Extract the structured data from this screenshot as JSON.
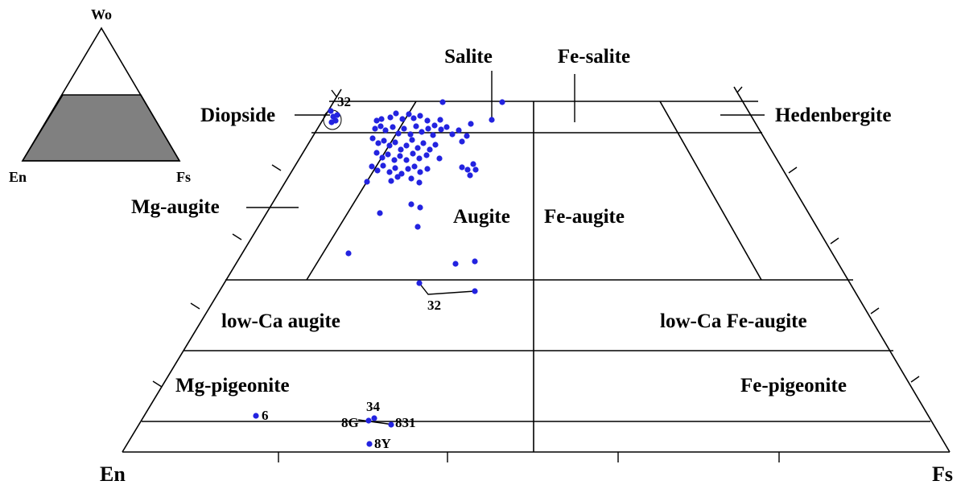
{
  "inset": {
    "apex": "Wo",
    "left": "En",
    "right": "Fs"
  },
  "axis": {
    "left": "En",
    "right": "Fs"
  },
  "fields": {
    "diopside": "Diopside",
    "salite": "Salite",
    "fe_salite": "Fe-salite",
    "hedenbergite": "Hedenbergite",
    "mg_augite": "Mg-augite",
    "augite": "Augite",
    "fe_augite": "Fe-augite",
    "low_ca_augite": "low-Ca augite",
    "low_ca_fe_augite": "low-Ca Fe-augite",
    "mg_pigeonite": "Mg-pigeonite",
    "fe_pigeonite": "Fe-pigeonite"
  },
  "point_labels": {
    "p32_top": "32",
    "p32_mid": "32",
    "p34": "34",
    "p8G": "8G",
    "p831": "831",
    "p8Y": "8Y",
    "p6": "6"
  },
  "colors": {
    "points": "#2323e0",
    "inset_fill": "#808080"
  }
}
